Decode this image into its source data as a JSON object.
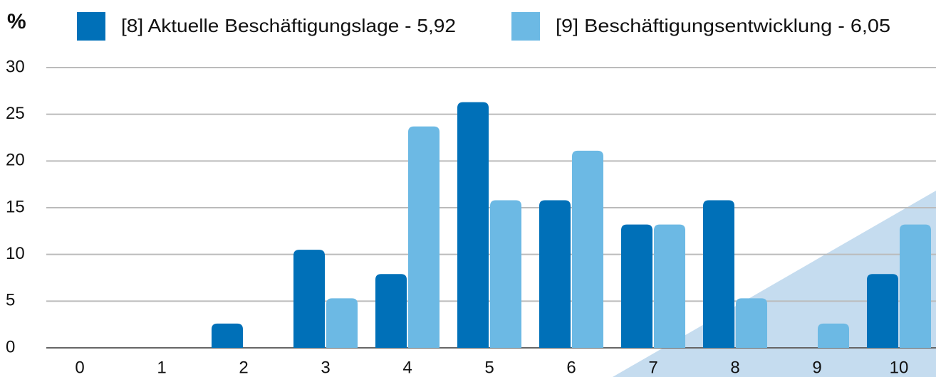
{
  "chart_data": {
    "type": "bar",
    "y_unit": "%",
    "categories": [
      "0",
      "1",
      "2",
      "3",
      "4",
      "5",
      "6",
      "7",
      "8",
      "9",
      "10"
    ],
    "series": [
      {
        "name": "[8] Aktuelle Beschäftigungslage - 5,92",
        "color": "#0070b8",
        "values": [
          0,
          0,
          2.6,
          10.5,
          7.9,
          26.3,
          15.8,
          13.2,
          15.8,
          0,
          7.9
        ]
      },
      {
        "name": "[9] Beschäftigungsentwicklung - 6,05",
        "color": "#6cb9e4",
        "values": [
          0,
          0,
          0,
          5.3,
          23.7,
          15.8,
          21.1,
          13.2,
          5.3,
          2.6,
          13.2
        ]
      }
    ],
    "ylim": [
      0,
      30
    ],
    "yticks": [
      0,
      5,
      10,
      15,
      20,
      25,
      30
    ],
    "grid": true
  }
}
